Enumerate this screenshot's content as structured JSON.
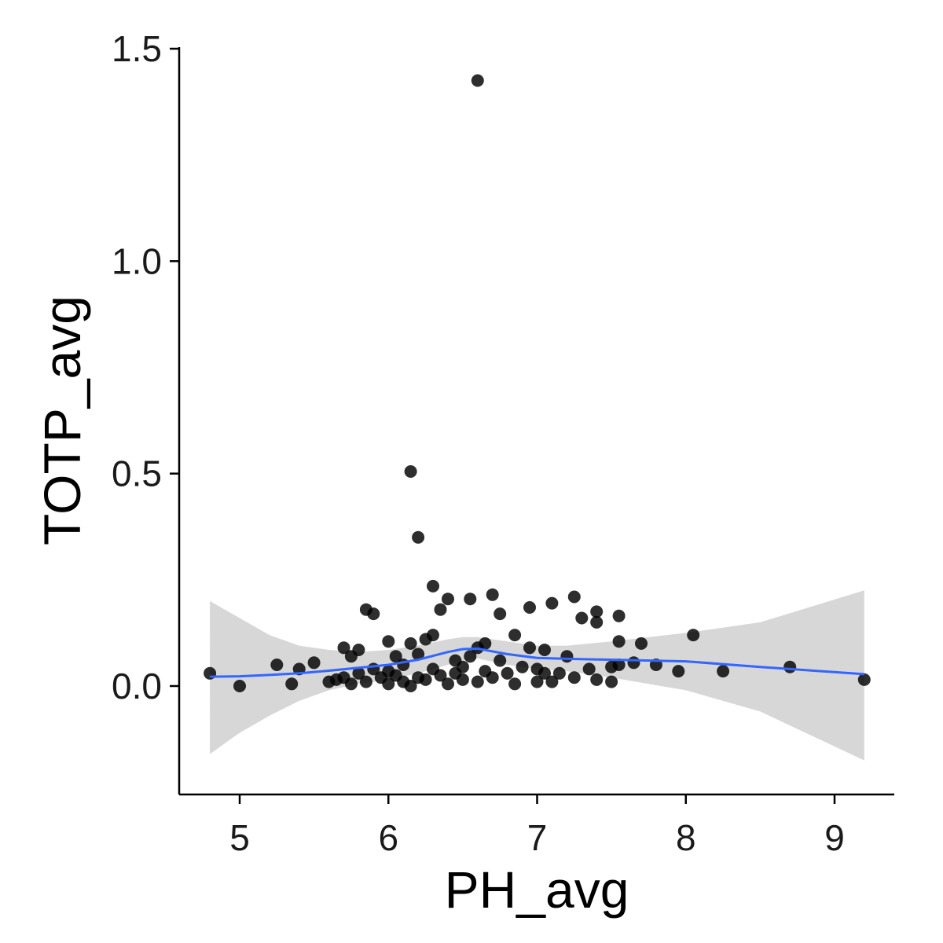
{
  "chart_data": {
    "type": "scatter",
    "title": "",
    "xlabel": "PH_avg",
    "ylabel": "TOTP_avg",
    "xlim": [
      4.6,
      9.4
    ],
    "ylim": [
      -0.25,
      1.5
    ],
    "x_ticks": [
      5,
      6,
      7,
      8,
      9
    ],
    "x_tick_labels": [
      "5",
      "6",
      "7",
      "8",
      "9"
    ],
    "y_ticks": [
      0.0,
      0.5,
      1.0,
      1.5
    ],
    "y_tick_labels": [
      "0.0",
      "0.5",
      "1.0",
      "1.5"
    ],
    "grid": false,
    "legend": "none",
    "colors": {
      "points": "#000000",
      "smooth_line": "#3366ff",
      "confidence_band": "#d3d3d3",
      "axis": "#000000"
    },
    "points": [
      [
        4.8,
        0.03
      ],
      [
        5.0,
        0.0
      ],
      [
        5.25,
        0.05
      ],
      [
        5.35,
        0.005
      ],
      [
        5.4,
        0.04
      ],
      [
        5.5,
        0.055
      ],
      [
        5.6,
        0.01
      ],
      [
        5.65,
        0.015
      ],
      [
        5.7,
        0.09
      ],
      [
        5.7,
        0.02
      ],
      [
        5.75,
        0.005
      ],
      [
        5.75,
        0.07
      ],
      [
        5.8,
        0.085
      ],
      [
        5.8,
        0.03
      ],
      [
        5.85,
        0.18
      ],
      [
        5.85,
        0.01
      ],
      [
        5.9,
        0.17
      ],
      [
        5.9,
        0.04
      ],
      [
        5.95,
        0.02
      ],
      [
        6.0,
        0.035
      ],
      [
        6.0,
        0.105
      ],
      [
        6.0,
        0.005
      ],
      [
        6.05,
        0.07
      ],
      [
        6.05,
        0.025
      ],
      [
        6.1,
        0.01
      ],
      [
        6.1,
        0.05
      ],
      [
        6.15,
        0.505
      ],
      [
        6.15,
        0.1
      ],
      [
        6.15,
        0.0
      ],
      [
        6.2,
        0.35
      ],
      [
        6.2,
        0.075
      ],
      [
        6.2,
        0.02
      ],
      [
        6.25,
        0.11
      ],
      [
        6.25,
        0.015
      ],
      [
        6.3,
        0.235
      ],
      [
        6.3,
        0.12
      ],
      [
        6.3,
        0.04
      ],
      [
        6.35,
        0.18
      ],
      [
        6.35,
        0.025
      ],
      [
        6.4,
        0.205
      ],
      [
        6.4,
        0.005
      ],
      [
        6.45,
        0.06
      ],
      [
        6.45,
        0.03
      ],
      [
        6.5,
        0.045
      ],
      [
        6.5,
        0.015
      ],
      [
        6.55,
        0.205
      ],
      [
        6.55,
        0.07
      ],
      [
        6.6,
        1.425
      ],
      [
        6.6,
        0.09
      ],
      [
        6.6,
        0.01
      ],
      [
        6.65,
        0.1
      ],
      [
        6.65,
        0.035
      ],
      [
        6.7,
        0.215
      ],
      [
        6.7,
        0.02
      ],
      [
        6.75,
        0.17
      ],
      [
        6.75,
        0.06
      ],
      [
        6.8,
        0.03
      ],
      [
        6.85,
        0.12
      ],
      [
        6.85,
        0.005
      ],
      [
        6.9,
        0.045
      ],
      [
        6.95,
        0.185
      ],
      [
        6.95,
        0.09
      ],
      [
        7.0,
        0.01
      ],
      [
        7.0,
        0.04
      ],
      [
        7.05,
        0.085
      ],
      [
        7.05,
        0.03
      ],
      [
        7.1,
        0.195
      ],
      [
        7.1,
        0.01
      ],
      [
        7.15,
        0.03
      ],
      [
        7.2,
        0.07
      ],
      [
        7.25,
        0.21
      ],
      [
        7.25,
        0.02
      ],
      [
        7.3,
        0.16
      ],
      [
        7.35,
        0.04
      ],
      [
        7.4,
        0.175
      ],
      [
        7.4,
        0.15
      ],
      [
        7.4,
        0.015
      ],
      [
        7.5,
        0.045
      ],
      [
        7.5,
        0.01
      ],
      [
        7.55,
        0.165
      ],
      [
        7.55,
        0.105
      ],
      [
        7.55,
        0.05
      ],
      [
        7.65,
        0.055
      ],
      [
        7.7,
        0.1
      ],
      [
        7.8,
        0.05
      ],
      [
        7.95,
        0.035
      ],
      [
        8.05,
        0.12
      ],
      [
        8.25,
        0.035
      ],
      [
        8.7,
        0.045
      ],
      [
        9.2,
        0.015
      ]
    ],
    "smooth": {
      "x": [
        4.8,
        5.0,
        5.2,
        5.4,
        5.6,
        5.8,
        6.0,
        6.2,
        6.4,
        6.5,
        6.6,
        6.8,
        7.0,
        7.2,
        7.5,
        8.0,
        8.5,
        9.2
      ],
      "y": [
        0.022,
        0.023,
        0.026,
        0.03,
        0.036,
        0.043,
        0.05,
        0.062,
        0.08,
        0.087,
        0.088,
        0.075,
        0.066,
        0.064,
        0.062,
        0.058,
        0.045,
        0.028
      ],
      "lower": [
        -0.16,
        -0.11,
        -0.07,
        -0.035,
        -0.01,
        0.005,
        0.015,
        0.03,
        0.05,
        0.06,
        0.065,
        0.05,
        0.04,
        0.035,
        0.02,
        -0.01,
        -0.06,
        -0.175
      ],
      "upper": [
        0.2,
        0.16,
        0.12,
        0.095,
        0.085,
        0.08,
        0.085,
        0.095,
        0.11,
        0.115,
        0.115,
        0.105,
        0.095,
        0.095,
        0.105,
        0.125,
        0.15,
        0.225
      ]
    }
  }
}
